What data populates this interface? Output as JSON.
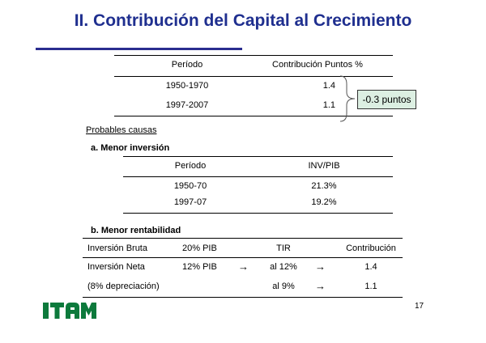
{
  "title": "II. Contribución del Capital al Crecimiento",
  "table1": {
    "headers": [
      "Período",
      "Contribución Puntos %"
    ],
    "rows": [
      {
        "period": "1950-1970",
        "value": "1.4"
      },
      {
        "period": "1997-2007",
        "value": "1.1"
      }
    ],
    "callout": "-0.3 puntos"
  },
  "causes": {
    "heading": "Probables causas",
    "a_label": "a. Menor inversión",
    "b_label": "b. Menor rentabilidad"
  },
  "table2": {
    "headers": [
      "Período",
      "INV/PIB"
    ],
    "rows": [
      {
        "period": "1950-70",
        "value": "21.3%"
      },
      {
        "period": "1997-07",
        "value": "19.2%"
      }
    ]
  },
  "table3": {
    "header": {
      "c1": "Inversión Bruta",
      "c2": "20% PIB",
      "c3": "TIR",
      "c4": "Contribución"
    },
    "row1": {
      "c1": "Inversión Neta",
      "c2": "12% PIB",
      "arrow1": "→",
      "c3": "al 12%",
      "arrow2": "→",
      "c4": "1.4"
    },
    "row2": {
      "c1": "(8% depreciación)",
      "c3": "al 9%",
      "arrow2": "→",
      "c4": "1.1"
    }
  },
  "logo_text": "ITAM",
  "page_number": "17",
  "colors": {
    "title": "#1f2f8f",
    "logo": "#0d7a3c",
    "callout_bg": "#dcefe2"
  }
}
